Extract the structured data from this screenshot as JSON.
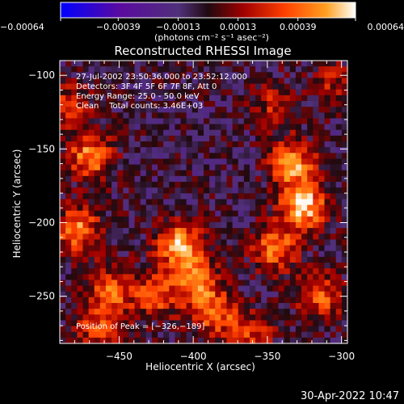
{
  "chart_data": {
    "type": "heatmap",
    "title": "Reconstructed RHESSI Image",
    "xlabel": "Heliocentric X (arcsec)",
    "ylabel": "Heliocentric Y (arcsec)",
    "xlim": [
      -490,
      -296
    ],
    "ylim": [
      -282,
      -90
    ],
    "x_ticks": [
      -450,
      -400,
      -350,
      -300
    ],
    "y_ticks": [
      -100,
      -150,
      -200,
      -250
    ],
    "x_tick_labels": [
      "−450",
      "−400",
      "−350",
      "−300"
    ],
    "y_tick_labels": [
      "−100",
      "−150",
      "−200",
      "−250"
    ],
    "colorbar": {
      "range": [
        -0.00064,
        0.00064
      ],
      "ticks": [
        -0.00064,
        -0.00039,
        -0.00013,
        0.00013,
        0.00039,
        0.00064
      ],
      "tick_labels": [
        "−0.00064",
        "−0.00039",
        "−0.00013",
        "0.00013",
        "0.00039",
        "0.00064"
      ],
      "unit_label": "(photons cm⁻² s⁻¹ asec⁻²)",
      "colormap": [
        "#0000ff",
        "#5a0aa0",
        "#50307a",
        "#200a10",
        "#a00000",
        "#ff4000",
        "#ffa020",
        "#ffffff"
      ]
    },
    "annotations": [
      "27-Jul-2002 23:50:36.000 to 23:52:12.000",
      "Detectors: 3F 4F 5F 6F 7F 8F, Att 0",
      "Energy Range: 25.0 - 50.0 keV",
      "Clean    Total counts: 3.46E+03"
    ],
    "peak_label": "Position of Peak = [−326,−189]",
    "peak": [
      -326,
      -189
    ],
    "sources": [
      {
        "x": -326,
        "y": -189,
        "amp": 0.00064
      },
      {
        "x": -333,
        "y": -160,
        "amp": 0.00052
      },
      {
        "x": -345,
        "y": -218,
        "amp": 0.00045
      },
      {
        "x": -315,
        "y": -250,
        "amp": 0.0004
      },
      {
        "x": -410,
        "y": -215,
        "amp": 0.00058
      },
      {
        "x": -398,
        "y": -240,
        "amp": 0.00046
      },
      {
        "x": -385,
        "y": -262,
        "amp": 0.0004
      },
      {
        "x": -425,
        "y": -250,
        "amp": 0.00035
      },
      {
        "x": -470,
        "y": -155,
        "amp": 0.0005
      },
      {
        "x": -478,
        "y": -205,
        "amp": 0.00048
      },
      {
        "x": -455,
        "y": -245,
        "amp": 0.00042
      },
      {
        "x": -465,
        "y": -270,
        "amp": 0.00036
      },
      {
        "x": -485,
        "y": -120,
        "amp": 0.0003
      },
      {
        "x": -345,
        "y": -120,
        "amp": 0.00025
      },
      {
        "x": -305,
        "y": -105,
        "amp": 0.00022
      },
      {
        "x": -360,
        "y": -275,
        "amp": 0.0003
      }
    ]
  },
  "footer": {
    "timestamp": "30-Apr-2022 10:47"
  }
}
